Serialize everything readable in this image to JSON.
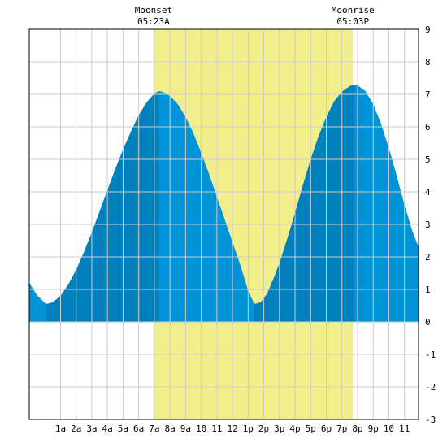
{
  "chart_data": {
    "type": "area",
    "title": "",
    "xlabel": "",
    "ylabel": "",
    "xlim": [
      -1,
      23.9
    ],
    "ylim": [
      -3,
      9
    ],
    "grid": true,
    "x_tick_labels": [
      {
        "x": 1,
        "label": "1a"
      },
      {
        "x": 2,
        "label": "2a"
      },
      {
        "x": 3,
        "label": "3a"
      },
      {
        "x": 4,
        "label": "4a"
      },
      {
        "x": 5,
        "label": "5a"
      },
      {
        "x": 6,
        "label": "6a"
      },
      {
        "x": 7,
        "label": "7a"
      },
      {
        "x": 8,
        "label": "8a"
      },
      {
        "x": 9,
        "label": "9a"
      },
      {
        "x": 10,
        "label": "10"
      },
      {
        "x": 11,
        "label": "11"
      },
      {
        "x": 12,
        "label": "12"
      },
      {
        "x": 13,
        "label": "1p"
      },
      {
        "x": 14,
        "label": "2p"
      },
      {
        "x": 15,
        "label": "3p"
      },
      {
        "x": 16,
        "label": "4p"
      },
      {
        "x": 17,
        "label": "5p"
      },
      {
        "x": 18,
        "label": "6p"
      },
      {
        "x": 19,
        "label": "7p"
      },
      {
        "x": 20,
        "label": "8p"
      },
      {
        "x": 21,
        "label": "9p"
      },
      {
        "x": 22,
        "label": "10"
      },
      {
        "x": 23,
        "label": "11"
      }
    ],
    "y_ticks": [
      -3,
      -2,
      -1,
      0,
      1,
      2,
      3,
      4,
      5,
      6,
      7,
      8,
      9
    ],
    "moon_events": [
      {
        "name": "Moonset",
        "time": "05:23A",
        "x": 6.95
      },
      {
        "name": "Moonrise",
        "time": "05:03P",
        "x": 19.7
      }
    ],
    "daylight_band": {
      "start": 6.95,
      "end": 19.7,
      "color": "#f2ee8c"
    },
    "tide_extremes": [
      {
        "x": 0.1,
        "y": 0.55,
        "kind": "low"
      },
      {
        "x": 7.3,
        "y": 7.1,
        "kind": "high"
      },
      {
        "x": 13.4,
        "y": 0.55,
        "kind": "low"
      },
      {
        "x": 19.8,
        "y": 7.3,
        "kind": "high"
      }
    ],
    "series": [
      {
        "values": [
          {
            "x": -1.0,
            "y": 1.2
          },
          {
            "x": -0.5,
            "y": 0.82
          },
          {
            "x": 0.0,
            "y": 0.58
          },
          {
            "x": 0.1,
            "y": 0.55
          },
          {
            "x": 0.5,
            "y": 0.6
          },
          {
            "x": 1.0,
            "y": 0.8
          },
          {
            "x": 1.5,
            "y": 1.15
          },
          {
            "x": 2.0,
            "y": 1.6
          },
          {
            "x": 2.5,
            "y": 2.15
          },
          {
            "x": 3.0,
            "y": 2.75
          },
          {
            "x": 3.5,
            "y": 3.4
          },
          {
            "x": 4.0,
            "y": 4.05
          },
          {
            "x": 4.5,
            "y": 4.7
          },
          {
            "x": 5.0,
            "y": 5.3
          },
          {
            "x": 5.5,
            "y": 5.85
          },
          {
            "x": 6.0,
            "y": 6.35
          },
          {
            "x": 6.5,
            "y": 6.75
          },
          {
            "x": 7.0,
            "y": 7.02
          },
          {
            "x": 7.3,
            "y": 7.1
          },
          {
            "x": 7.5,
            "y": 7.08
          },
          {
            "x": 8.0,
            "y": 6.95
          },
          {
            "x": 8.5,
            "y": 6.7
          },
          {
            "x": 9.0,
            "y": 6.3
          },
          {
            "x": 9.5,
            "y": 5.8
          },
          {
            "x": 10.0,
            "y": 5.2
          },
          {
            "x": 10.5,
            "y": 4.55
          },
          {
            "x": 11.0,
            "y": 3.85
          },
          {
            "x": 11.5,
            "y": 3.15
          },
          {
            "x": 12.0,
            "y": 2.45
          },
          {
            "x": 12.5,
            "y": 1.75
          },
          {
            "x": 13.0,
            "y": 0.95
          },
          {
            "x": 13.4,
            "y": 0.55
          },
          {
            "x": 13.8,
            "y": 0.6
          },
          {
            "x": 14.2,
            "y": 0.85
          },
          {
            "x": 14.6,
            "y": 1.3
          },
          {
            "x": 15.0,
            "y": 1.8
          },
          {
            "x": 15.5,
            "y": 2.55
          },
          {
            "x": 16.0,
            "y": 3.35
          },
          {
            "x": 16.5,
            "y": 4.2
          },
          {
            "x": 17.0,
            "y": 5.0
          },
          {
            "x": 17.5,
            "y": 5.7
          },
          {
            "x": 18.0,
            "y": 6.3
          },
          {
            "x": 18.5,
            "y": 6.78
          },
          {
            "x": 19.0,
            "y": 7.08
          },
          {
            "x": 19.5,
            "y": 7.25
          },
          {
            "x": 19.8,
            "y": 7.3
          },
          {
            "x": 20.0,
            "y": 7.28
          },
          {
            "x": 20.5,
            "y": 7.1
          },
          {
            "x": 21.0,
            "y": 6.7
          },
          {
            "x": 21.5,
            "y": 6.1
          },
          {
            "x": 22.0,
            "y": 5.35
          },
          {
            "x": 22.5,
            "y": 4.5
          },
          {
            "x": 23.0,
            "y": 3.6
          },
          {
            "x": 23.5,
            "y": 2.8
          },
          {
            "x": 23.9,
            "y": 2.3
          }
        ]
      }
    ],
    "rising_intervals": [
      [
        0.1,
        7.3
      ],
      [
        13.4,
        19.8
      ]
    ],
    "colors": {
      "ebb": "#0193d7",
      "flood": "#0081be",
      "daylight": "#f2ee8c",
      "grid": "#cccccc",
      "frame": "#000000"
    }
  }
}
